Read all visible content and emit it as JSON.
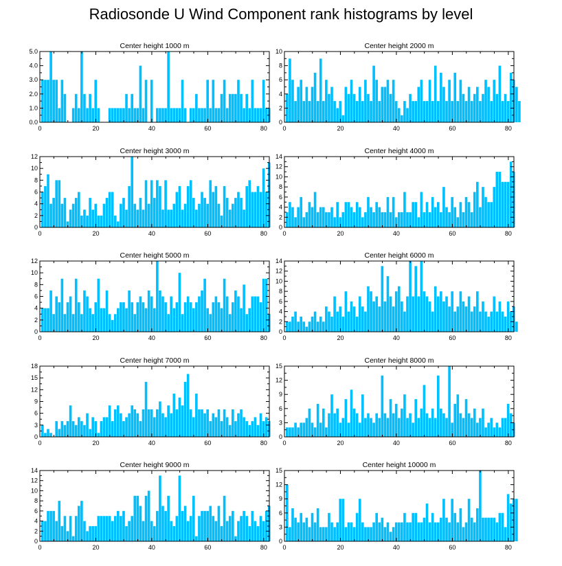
{
  "title": "Radiosonde U Wind Component rank histograms by level",
  "colors": {
    "bar": "#00BFFF",
    "frame": "#000000"
  },
  "chart_data": [
    {
      "type": "bar",
      "title": "Center height 1000 m",
      "xlim": [
        0,
        82
      ],
      "xticks": [
        0,
        20,
        40,
        60,
        80
      ],
      "ylim": [
        0,
        5
      ],
      "yticks": [
        0,
        1,
        2,
        3,
        4,
        5
      ],
      "ytick_labels": [
        "0.0",
        "1.0",
        "2.0",
        "3.0",
        "4.0",
        "5.0"
      ],
      "values": [
        3,
        3,
        3,
        5,
        3,
        3,
        1,
        3,
        2,
        0,
        0,
        1,
        2,
        1,
        5,
        2,
        1,
        2,
        1,
        3,
        1,
        0,
        0,
        0,
        1,
        1,
        1,
        1,
        1,
        1,
        2,
        1,
        2,
        1,
        1,
        4,
        1,
        3,
        0,
        3,
        0,
        1,
        1,
        1,
        1,
        5,
        1,
        1,
        1,
        1,
        3,
        1,
        0,
        1,
        1,
        2,
        1,
        1,
        1,
        3,
        1,
        3,
        1,
        1,
        2,
        3,
        1,
        2,
        2,
        2,
        3,
        2,
        1,
        2,
        1,
        3,
        1,
        1,
        1,
        3,
        1,
        1
      ]
    },
    {
      "type": "bar",
      "title": "Center height 2000 m",
      "xlim": [
        0,
        82
      ],
      "xticks": [
        0,
        20,
        40,
        60,
        80
      ],
      "ylim": [
        0,
        10
      ],
      "yticks": [
        0,
        2,
        4,
        6,
        8,
        10
      ],
      "ytick_labels": [
        "0",
        "2",
        "4",
        "6",
        "8",
        "10"
      ],
      "values": [
        4,
        9,
        6,
        3,
        5,
        6,
        3,
        5,
        3,
        5,
        7,
        3,
        9,
        3,
        6,
        4,
        5,
        3,
        2,
        3,
        1,
        5,
        4,
        6,
        4,
        3,
        5,
        3,
        6,
        4,
        3,
        8,
        6,
        3,
        5,
        5,
        6,
        4,
        6,
        3,
        2,
        1,
        3,
        2,
        4,
        3,
        3,
        5,
        6,
        3,
        3,
        6,
        3,
        8,
        3,
        7,
        5,
        3,
        6,
        3,
        7,
        3,
        6,
        4,
        3,
        5,
        3,
        4,
        5,
        3,
        4,
        6,
        5,
        3,
        6,
        4,
        8,
        3,
        4,
        3,
        7,
        6,
        5,
        3
      ]
    },
    {
      "type": "bar",
      "title": "Center height 3000 m",
      "xlim": [
        0,
        82
      ],
      "xticks": [
        0,
        20,
        40,
        60,
        80
      ],
      "ylim": [
        0,
        12
      ],
      "yticks": [
        0,
        2,
        4,
        6,
        8,
        10,
        12
      ],
      "ytick_labels": [
        "0",
        "2",
        "4",
        "6",
        "8",
        "10",
        "12"
      ],
      "values": [
        6,
        7,
        9,
        4,
        5,
        8,
        8,
        4,
        5,
        1,
        3,
        4,
        5,
        6,
        2,
        3,
        2,
        5,
        3,
        4,
        2,
        2,
        4,
        5,
        6,
        6,
        2,
        1,
        4,
        5,
        3,
        7,
        12,
        4,
        3,
        5,
        3,
        8,
        4,
        8,
        5,
        8,
        7,
        3,
        8,
        3,
        3,
        4,
        6,
        7,
        3,
        4,
        7,
        8,
        5,
        3,
        4,
        6,
        5,
        4,
        8,
        6,
        7,
        4,
        2,
        7,
        5,
        3,
        4,
        5,
        6,
        5,
        3,
        7,
        8,
        6,
        6,
        7,
        6,
        10,
        6,
        11
      ]
    },
    {
      "type": "bar",
      "title": "Center height 4000 m",
      "xlim": [
        0,
        82
      ],
      "xticks": [
        0,
        20,
        40,
        60,
        80
      ],
      "ylim": [
        0,
        14
      ],
      "yticks": [
        0,
        2,
        4,
        6,
        8,
        10,
        12,
        14
      ],
      "ytick_labels": [
        "0",
        "2",
        "4",
        "6",
        "8",
        "10",
        "12",
        "14"
      ],
      "values": [
        3,
        5,
        4,
        2,
        4,
        6,
        2,
        3,
        5,
        4,
        7,
        3,
        4,
        4,
        3,
        3,
        4,
        2,
        5,
        2,
        3,
        5,
        5,
        4,
        3,
        5,
        4,
        2,
        3,
        6,
        4,
        3,
        5,
        4,
        3,
        3,
        6,
        3,
        6,
        2,
        3,
        3,
        7,
        3,
        3,
        5,
        5,
        2,
        7,
        3,
        5,
        3,
        6,
        4,
        5,
        3,
        8,
        4,
        3,
        6,
        4,
        2,
        5,
        3,
        6,
        5,
        3,
        7,
        9,
        4,
        8,
        6,
        5,
        5,
        8,
        11,
        11,
        9,
        9,
        9,
        13,
        11
      ]
    },
    {
      "type": "bar",
      "title": "Center height 5000 m",
      "xlim": [
        0,
        82
      ],
      "xticks": [
        0,
        20,
        40,
        60,
        80
      ],
      "ylim": [
        0,
        12
      ],
      "yticks": [
        0,
        2,
        4,
        6,
        8,
        10,
        12
      ],
      "ytick_labels": [
        "0",
        "2",
        "4",
        "6",
        "8",
        "10",
        "12"
      ],
      "values": [
        4,
        4,
        4,
        7,
        3,
        6,
        5,
        9,
        3,
        5,
        6,
        3,
        9,
        5,
        3,
        7,
        6,
        4,
        3,
        5,
        9,
        4,
        4,
        7,
        3,
        2,
        3,
        4,
        5,
        5,
        4,
        7,
        5,
        3,
        5,
        6,
        5,
        4,
        7,
        6,
        4,
        12,
        7,
        6,
        5,
        3,
        6,
        4,
        5,
        10,
        3,
        5,
        6,
        5,
        4,
        5,
        6,
        7,
        9,
        4,
        3,
        5,
        6,
        5,
        4,
        9,
        6,
        3,
        5,
        7,
        6,
        4,
        8,
        3,
        4,
        6,
        6,
        6,
        5,
        9,
        9,
        3
      ]
    },
    {
      "type": "bar",
      "title": "Center height 6000 m",
      "xlim": [
        0,
        82
      ],
      "xticks": [
        0,
        20,
        40,
        60,
        80
      ],
      "ylim": [
        0,
        14
      ],
      "yticks": [
        0,
        2,
        4,
        6,
        8,
        10,
        12,
        14
      ],
      "ytick_labels": [
        "0",
        "2",
        "4",
        "6",
        "8",
        "10",
        "12",
        "14"
      ],
      "values": [
        2,
        2,
        3,
        4,
        2,
        3,
        2,
        1,
        2,
        3,
        4,
        2,
        3,
        2,
        5,
        4,
        3,
        7,
        4,
        5,
        3,
        8,
        4,
        6,
        5,
        3,
        7,
        5,
        4,
        9,
        8,
        6,
        7,
        5,
        13,
        6,
        11,
        7,
        5,
        8,
        9,
        6,
        4,
        7,
        14,
        7,
        13,
        7,
        14,
        8,
        7,
        6,
        4,
        9,
        7,
        8,
        6,
        7,
        5,
        8,
        4,
        5,
        8,
        6,
        5,
        7,
        4,
        5,
        8,
        4,
        6,
        4,
        3,
        4,
        7,
        4,
        6,
        4,
        3,
        6,
        4,
        5,
        2
      ]
    },
    {
      "type": "bar",
      "title": "Center height 7000 m",
      "xlim": [
        0,
        82
      ],
      "xticks": [
        0,
        20,
        40,
        60,
        80
      ],
      "ylim": [
        0,
        18
      ],
      "yticks": [
        0,
        3,
        6,
        9,
        12,
        15,
        18
      ],
      "ytick_labels": [
        "0",
        "3",
        "6",
        "9",
        "12",
        "15",
        "18"
      ],
      "values": [
        3,
        1,
        2,
        1,
        0,
        4,
        2,
        4,
        3,
        4,
        8,
        4,
        3,
        5,
        4,
        3,
        6,
        2,
        5,
        4,
        1,
        4,
        5,
        5,
        8,
        4,
        7,
        8,
        6,
        4,
        5,
        6,
        8,
        7,
        6,
        4,
        7,
        14,
        7,
        7,
        5,
        7,
        9,
        6,
        5,
        8,
        6,
        11,
        7,
        10,
        8,
        14,
        16,
        7,
        5,
        11,
        7,
        7,
        6,
        7,
        4,
        6,
        5,
        7,
        4,
        7,
        5,
        3,
        7,
        4,
        6,
        7,
        5,
        4,
        3,
        4,
        5,
        3,
        6,
        4,
        5,
        4
      ]
    },
    {
      "type": "bar",
      "title": "Center height 8000 m",
      "xlim": [
        0,
        82
      ],
      "xticks": [
        0,
        20,
        40,
        60,
        80
      ],
      "ylim": [
        0,
        15
      ],
      "yticks": [
        0,
        3,
        6,
        9,
        12,
        15
      ],
      "ytick_labels": [
        "0",
        "3",
        "6",
        "9",
        "12",
        "15"
      ],
      "values": [
        2,
        2,
        2,
        3,
        2,
        3,
        3,
        4,
        6,
        3,
        2,
        7,
        3,
        6,
        2,
        5,
        9,
        5,
        6,
        3,
        4,
        8,
        3,
        10,
        6,
        5,
        3,
        9,
        4,
        5,
        4,
        3,
        5,
        4,
        13,
        5,
        4,
        8,
        5,
        7,
        4,
        6,
        9,
        4,
        5,
        3,
        8,
        4,
        6,
        11,
        5,
        4,
        6,
        4,
        13,
        6,
        5,
        4,
        15,
        3,
        7,
        9,
        5,
        4,
        8,
        5,
        4,
        6,
        3,
        4,
        6,
        2,
        3,
        4,
        2,
        3,
        2,
        4,
        4,
        7,
        5,
        3
      ]
    },
    {
      "type": "bar",
      "title": "Center height 9000 m",
      "xlim": [
        0,
        82
      ],
      "xticks": [
        0,
        20,
        40,
        60,
        80
      ],
      "ylim": [
        0,
        14
      ],
      "yticks": [
        0,
        2,
        4,
        6,
        8,
        10,
        12,
        14
      ],
      "ytick_labels": [
        "0",
        "2",
        "4",
        "6",
        "8",
        "10",
        "12",
        "14"
      ],
      "values": [
        4,
        4,
        6,
        6,
        6,
        4,
        8,
        3,
        5,
        2,
        5,
        1,
        5,
        7,
        8,
        4,
        2,
        3,
        3,
        3,
        5,
        5,
        5,
        5,
        5,
        4,
        5,
        6,
        5,
        6,
        3,
        4,
        5,
        9,
        9,
        7,
        4,
        9,
        10,
        4,
        3,
        6,
        13,
        7,
        6,
        9,
        4,
        3,
        5,
        13,
        6,
        7,
        4,
        5,
        9,
        1,
        5,
        6,
        6,
        6,
        7,
        5,
        4,
        7,
        3,
        9,
        4,
        5,
        6,
        1,
        4,
        5,
        6,
        5,
        3,
        6,
        4,
        3,
        5,
        4,
        6,
        7
      ]
    },
    {
      "type": "bar",
      "title": "Center height 10000 m",
      "xlim": [
        0,
        82
      ],
      "xticks": [
        0,
        20,
        40,
        60,
        80
      ],
      "ylim": [
        0,
        15
      ],
      "yticks": [
        0,
        3,
        6,
        9,
        12,
        15
      ],
      "ytick_labels": [
        "0",
        "3",
        "6",
        "9",
        "12",
        "15"
      ],
      "values": [
        12,
        3,
        7,
        5,
        4,
        6,
        4,
        5,
        3,
        6,
        4,
        7,
        3,
        3,
        3,
        6,
        4,
        3,
        4,
        9,
        9,
        3,
        4,
        4,
        3,
        6,
        9,
        4,
        3,
        3,
        3,
        4,
        6,
        4,
        5,
        3,
        4,
        2,
        3,
        4,
        4,
        4,
        6,
        4,
        4,
        6,
        6,
        4,
        4,
        5,
        8,
        4,
        6,
        4,
        4,
        5,
        9,
        5,
        4,
        9,
        6,
        4,
        7,
        3,
        4,
        9,
        5,
        4,
        7,
        15,
        5,
        5,
        5,
        5,
        5,
        4,
        6,
        6,
        3,
        10,
        8,
        9,
        9
      ]
    }
  ]
}
